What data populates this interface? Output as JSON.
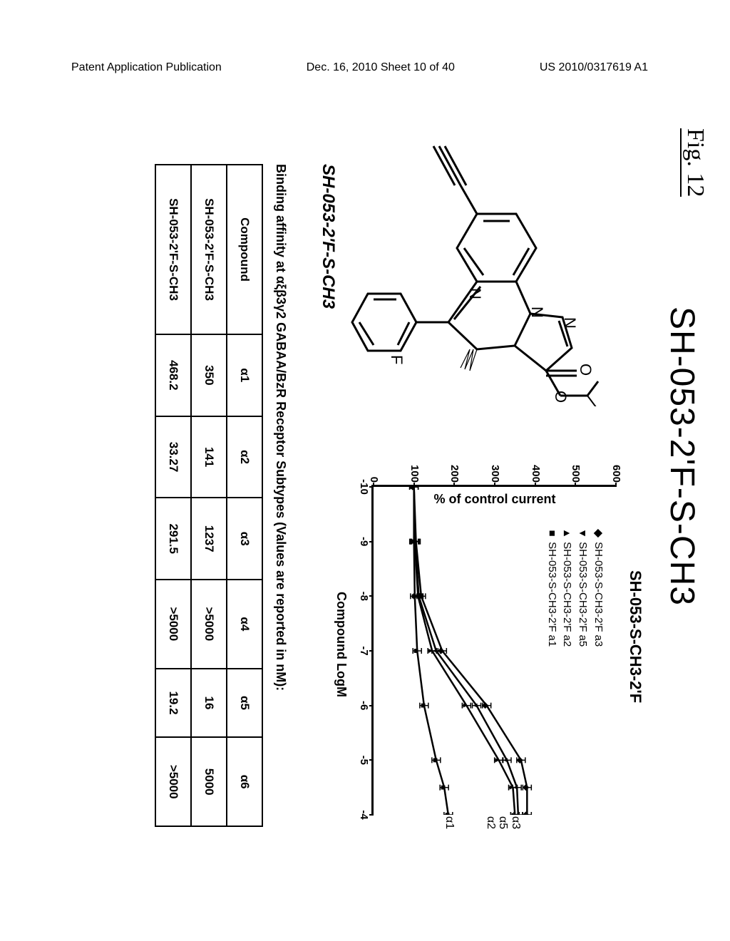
{
  "header": {
    "left": "Patent Application Publication",
    "middle": "Dec. 16, 2010  Sheet 10 of 40",
    "right": "US 2010/0317619 A1"
  },
  "figure_label": "Fig. 12",
  "main_title": "SH-053-2'F-S-CH3",
  "molecule_caption": "SH-053-2'F-S-CH3",
  "chart": {
    "title": "SH-053-S-CH3-2'F",
    "ylabel": "% of control current",
    "xlabel": "Compound LogM",
    "y_ticks": [
      0,
      100,
      200,
      300,
      400,
      500,
      600
    ],
    "x_ticks": [
      -10,
      -9,
      -8,
      -7,
      -6,
      -5,
      -4
    ],
    "legend": [
      {
        "marker": "◆",
        "label": "SH-053-S-CH3-2'F a3"
      },
      {
        "marker": "▾",
        "label": "SH-053-S-CH3-2'F a5"
      },
      {
        "marker": "▴",
        "label": "SH-053-S-CH3-2'F a2"
      },
      {
        "marker": "■",
        "label": "SH-053-S-CH3-2'F a1"
      }
    ],
    "right_labels": [
      {
        "text": "α3",
        "y": 132
      },
      {
        "text": "α5",
        "y": 150
      },
      {
        "text": "α2",
        "y": 167
      },
      {
        "text": "α1",
        "y": 225
      }
    ],
    "series": {
      "a1": [
        100,
        100,
        102,
        108,
        125,
        155,
        175,
        185
      ],
      "a2": [
        100,
        102,
        110,
        145,
        230,
        310,
        345,
        350
      ],
      "a3": [
        100,
        105,
        118,
        170,
        280,
        365,
        380,
        380
      ],
      "a5": [
        100,
        103,
        112,
        155,
        255,
        330,
        355,
        358
      ]
    },
    "x_values": [
      -10,
      -9,
      -8,
      -7,
      -6,
      -5,
      -4.5,
      -4
    ]
  },
  "table_caption": "Binding affinity at αξβ3γ2 GABAA/BzR Receptor Subtypes (Values are reported in nM):",
  "table": {
    "columns": [
      "Compound",
      "α1",
      "α2",
      "α3",
      "α4",
      "α5",
      "α6"
    ],
    "rows": [
      [
        "SH-053-2'F-S-CH3",
        "350",
        "141",
        "1237",
        ">5000",
        "16",
        "5000"
      ],
      [
        "SH-053-2'F-S-CH3",
        "468.2",
        "33.27",
        "291.5",
        ">5000",
        "19.2",
        ">5000"
      ]
    ]
  }
}
